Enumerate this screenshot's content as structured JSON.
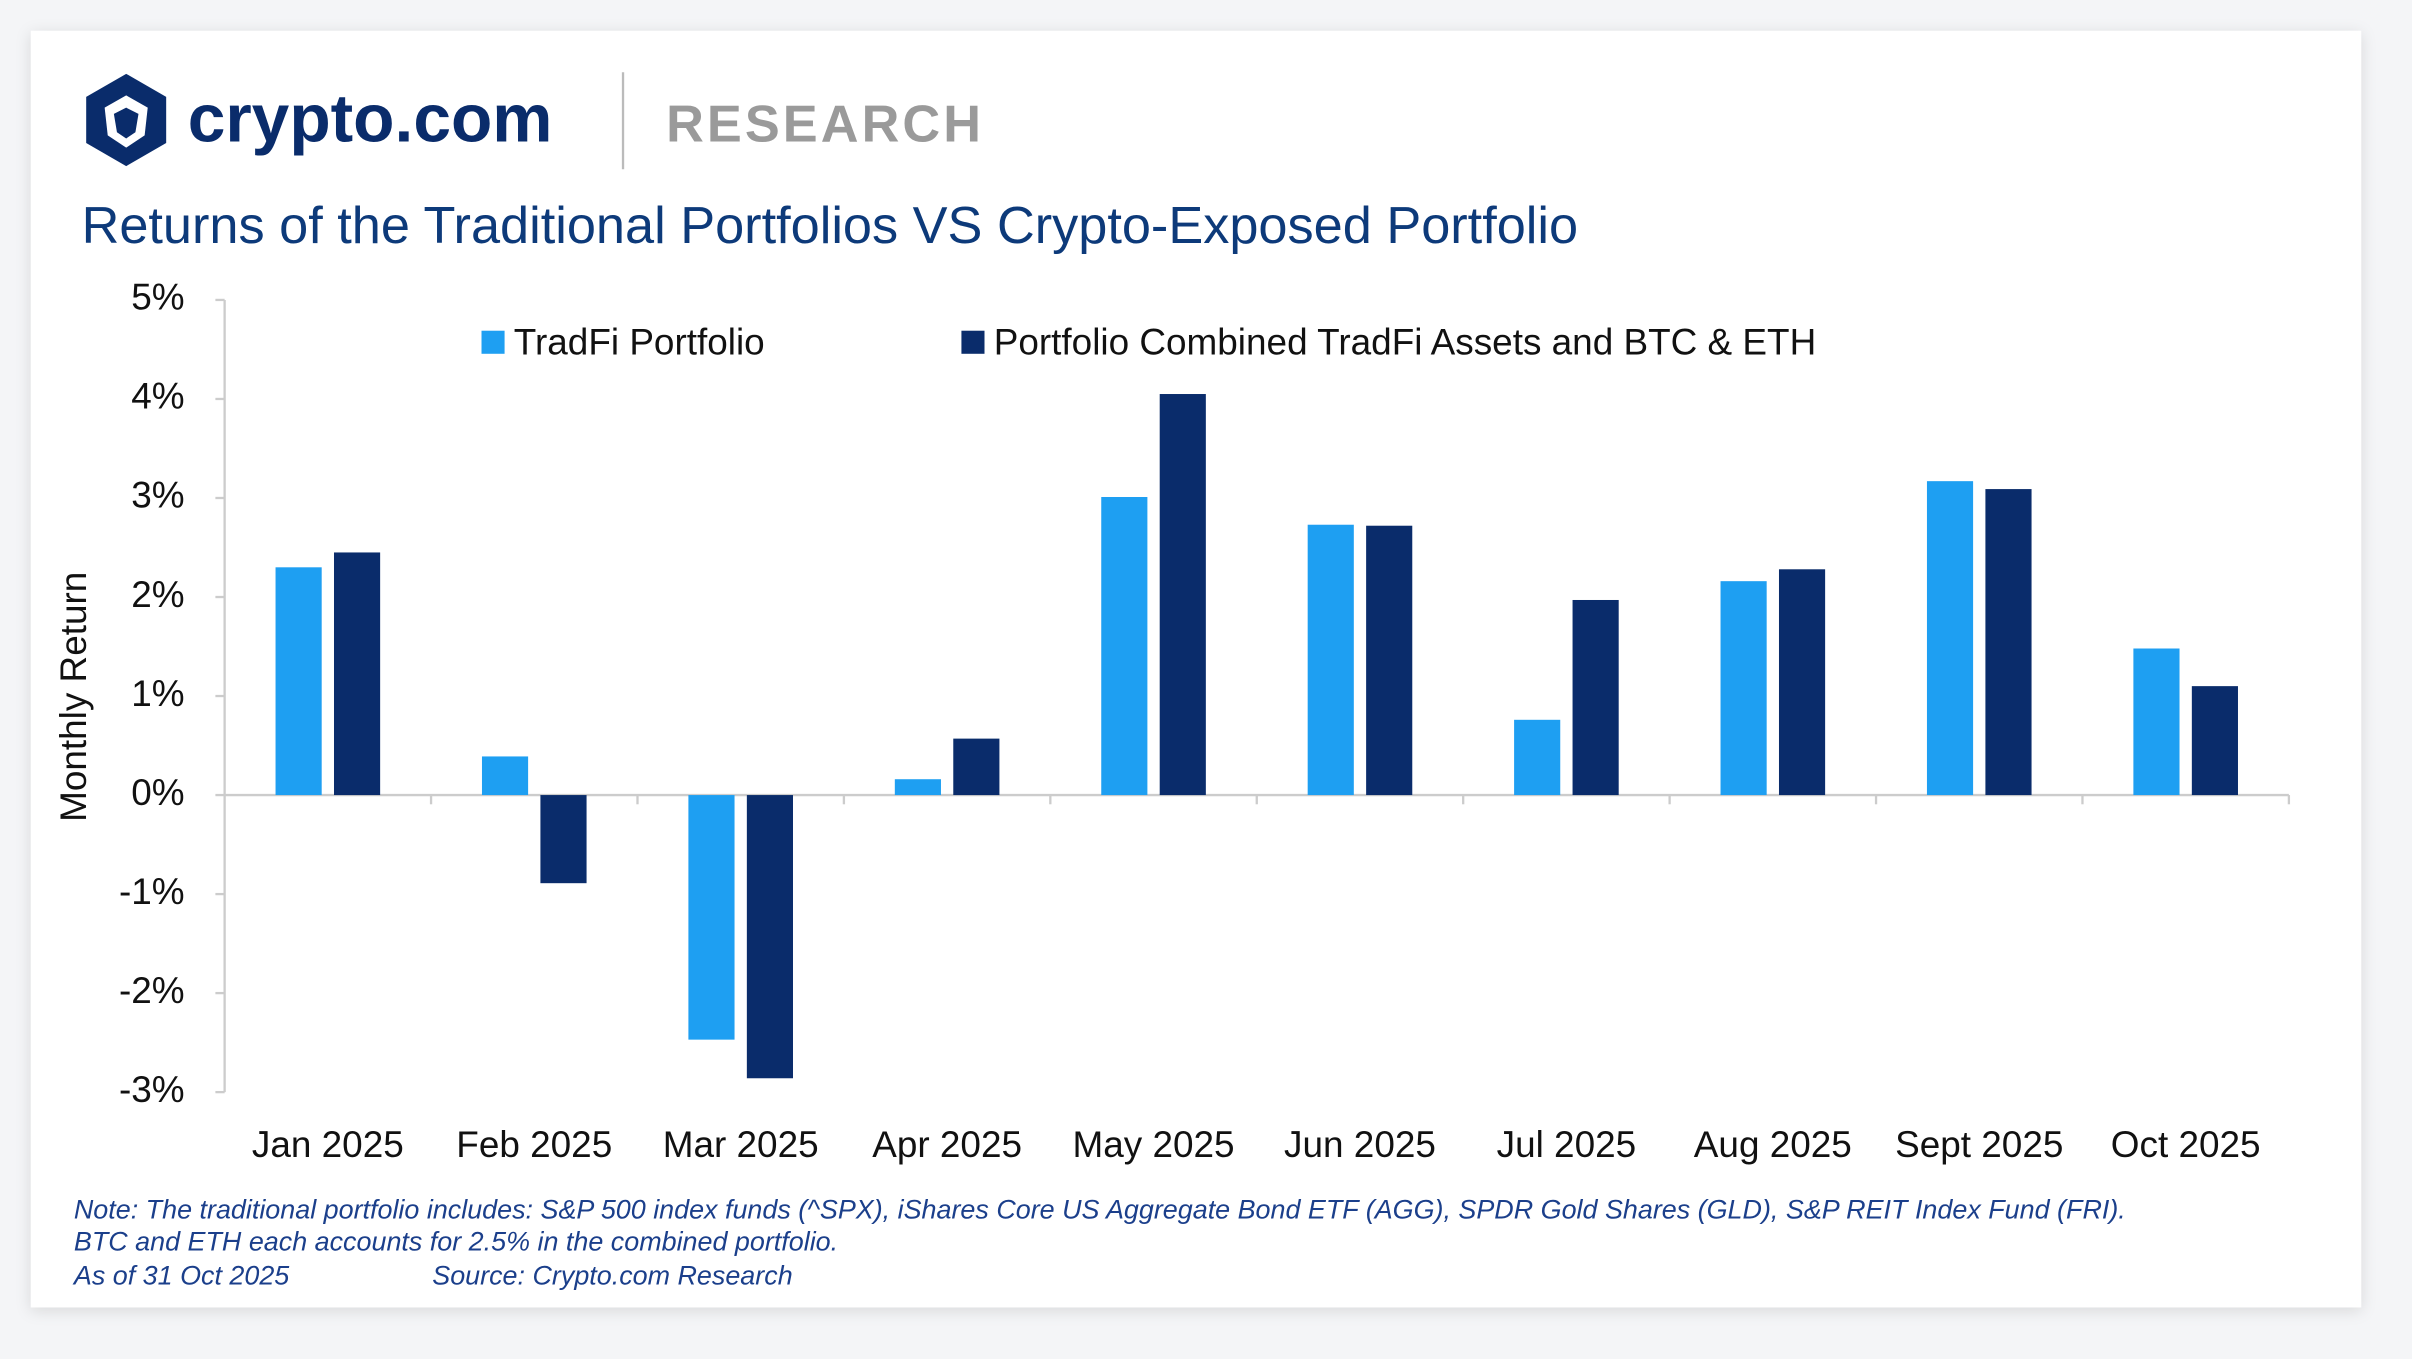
{
  "brand": "crypto.com",
  "section": "RESEARCH",
  "notes": [
    "Note: The traditional portfolio includes: S&P 500 index funds (^SPX), iShares Core US Aggregate Bond ETF (AGG), SPDR Gold Shares (GLD), S&P REIT Index Fund (FRI).",
    "BTC and ETH each accounts for 2.5% in the combined portfolio."
  ],
  "as_of": "As of 31 Oct 2025",
  "source": "Source: Crypto.com Research",
  "chart_data": {
    "type": "bar",
    "title": "Returns of the Traditional Portfolios VS Crypto-Exposed Portfolio",
    "y_label": "Monthly Return",
    "categories": [
      "Jan 2025",
      "Feb 2025",
      "Mar 2025",
      "Apr 2025",
      "May 2025",
      "Jun 2025",
      "Jul 2025",
      "Aug 2025",
      "Sept 2025",
      "Oct 2025"
    ],
    "series": [
      {
        "name": "TradFi Portfolio",
        "color": "#1e9ff2",
        "values": [
          2.3,
          0.39,
          -2.47,
          0.16,
          3.01,
          2.73,
          0.76,
          2.16,
          3.17,
          1.48
        ]
      },
      {
        "name": "Portfolio Combined TradFi Assets and BTC & ETH",
        "color": "#0a2c6b",
        "values": [
          2.45,
          -0.89,
          -2.86,
          0.57,
          4.05,
          2.72,
          1.97,
          2.28,
          3.09,
          1.1
        ]
      }
    ],
    "ylim": [
      -3,
      5
    ],
    "yticks": [
      {
        "value": -3,
        "label": "-3%"
      },
      {
        "value": -2,
        "label": "-2%"
      },
      {
        "value": -1,
        "label": "-1%"
      },
      {
        "value": 0,
        "label": "0%"
      },
      {
        "value": 1,
        "label": "1%"
      },
      {
        "value": 2,
        "label": "2%"
      },
      {
        "value": 3,
        "label": "3%"
      },
      {
        "value": 4,
        "label": "4%"
      },
      {
        "value": 5,
        "label": "5%"
      }
    ],
    "grid": false,
    "legend": "top"
  }
}
